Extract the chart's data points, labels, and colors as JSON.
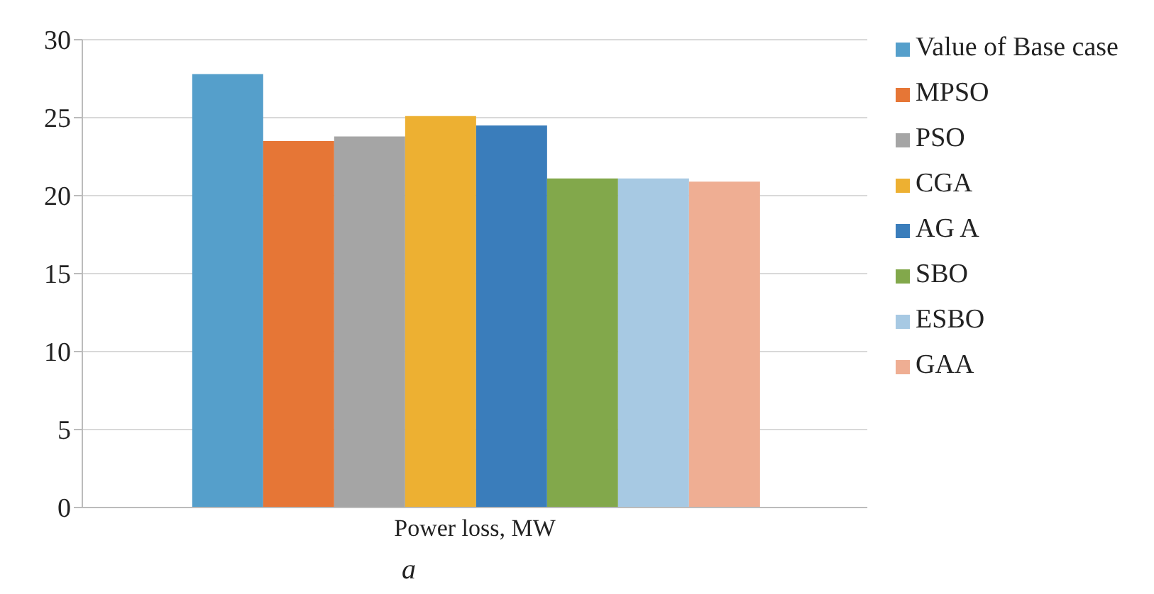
{
  "chart_data": {
    "type": "bar",
    "categories": [
      "Power loss, MW"
    ],
    "series": [
      {
        "name": "Value of Base case",
        "color": "#559fcb",
        "values": [
          27.8
        ]
      },
      {
        "name": "MPSO",
        "color": "#e67636",
        "values": [
          23.5
        ]
      },
      {
        "name": "PSO",
        "color": "#a5a5a5",
        "values": [
          23.8
        ]
      },
      {
        "name": "CGA",
        "color": "#edb032",
        "values": [
          25.1
        ]
      },
      {
        "name": "AG A",
        "color": "#3a7dbb",
        "values": [
          24.5
        ]
      },
      {
        "name": "SBO",
        "color": "#82a84b",
        "values": [
          21.1
        ]
      },
      {
        "name": "ESBO",
        "color": "#a7c9e3",
        "values": [
          21.1
        ]
      },
      {
        "name": "GAA",
        "color": "#efae93",
        "values": [
          20.9
        ]
      }
    ],
    "ylim": [
      0,
      30
    ],
    "yticks": [
      0,
      5,
      10,
      15,
      20,
      25,
      30
    ],
    "grid": "y",
    "legend": "right",
    "annotations": [
      "a"
    ]
  }
}
